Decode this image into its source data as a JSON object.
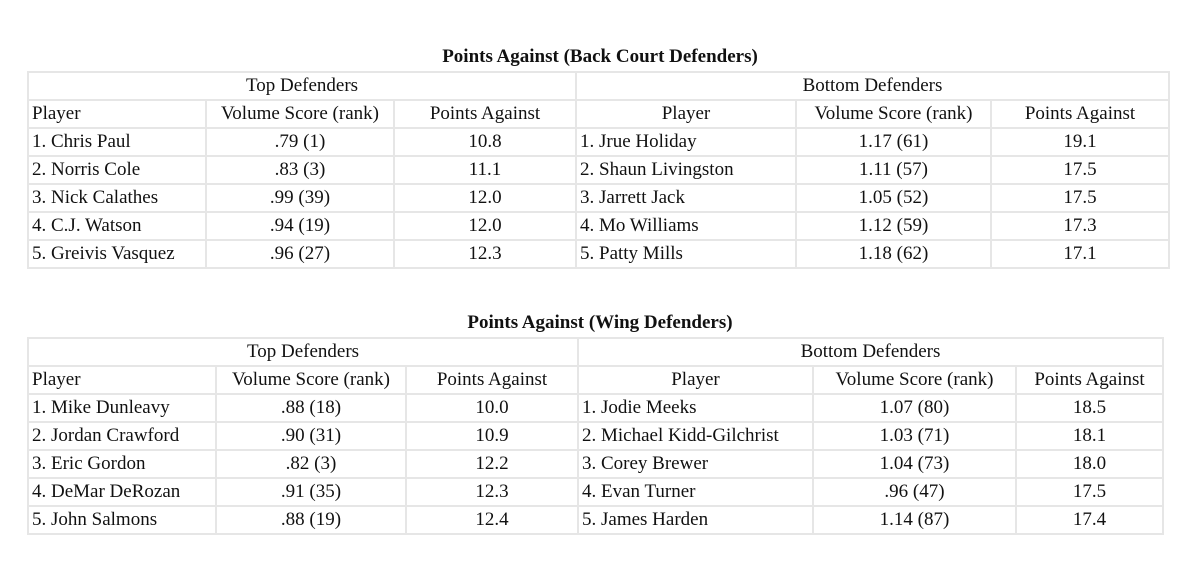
{
  "tables": [
    {
      "title": "Points Against (Back Court Defenders)",
      "top_label": "Top Defenders",
      "bottom_label": "Bottom Defenders",
      "columns": [
        "Player",
        "Volume Score (rank)",
        "Points Against"
      ],
      "top": [
        [
          "1. Chris Paul",
          ".79 (1)",
          "10.8"
        ],
        [
          "2. Norris Cole",
          ".83 (3)",
          "11.1"
        ],
        [
          "3. Nick Calathes",
          ".99 (39)",
          "12.0"
        ],
        [
          "4. C.J. Watson",
          ".94 (19)",
          "12.0"
        ],
        [
          "5. Greivis Vasquez",
          ".96 (27)",
          "12.3"
        ]
      ],
      "bottom": [
        [
          "1. Jrue Holiday",
          "1.17 (61)",
          "19.1"
        ],
        [
          "2. Shaun Livingston",
          "1.11 (57)",
          "17.5"
        ],
        [
          "3. Jarrett Jack",
          "1.05 (52)",
          "17.5"
        ],
        [
          " 4. Mo Williams",
          "1.12 (59)",
          "17.3"
        ],
        [
          "5. Patty Mills",
          "1.18 (62)",
          "17.1"
        ]
      ]
    },
    {
      "title": "Points Against (Wing Defenders)",
      "top_label": "Top Defenders",
      "bottom_label": "Bottom Defenders",
      "columns": [
        "Player",
        "Volume Score (rank)",
        "Points Against"
      ],
      "top": [
        [
          "1. Mike Dunleavy",
          ".88 (18)",
          "10.0"
        ],
        [
          "2. Jordan Crawford",
          ".90 (31)",
          "10.9"
        ],
        [
          "3. Eric Gordon",
          ".82 (3)",
          "12.2"
        ],
        [
          "4. DeMar DeRozan",
          ".91 (35)",
          "12.3"
        ],
        [
          "5. John Salmons",
          ".88 (19)",
          "12.4"
        ]
      ],
      "bottom": [
        [
          "1. Jodie Meeks",
          "1.07 (80)",
          "18.5"
        ],
        [
          "2. Michael Kidd-Gilchrist",
          "1.03 (71)",
          "18.1"
        ],
        [
          "3. Corey Brewer",
          "1.04 (73)",
          "18.0"
        ],
        [
          "4. Evan Turner",
          ".96 (47)",
          "17.5"
        ],
        [
          "5. James Harden",
          "1.14 (87)",
          "17.4"
        ]
      ]
    }
  ]
}
